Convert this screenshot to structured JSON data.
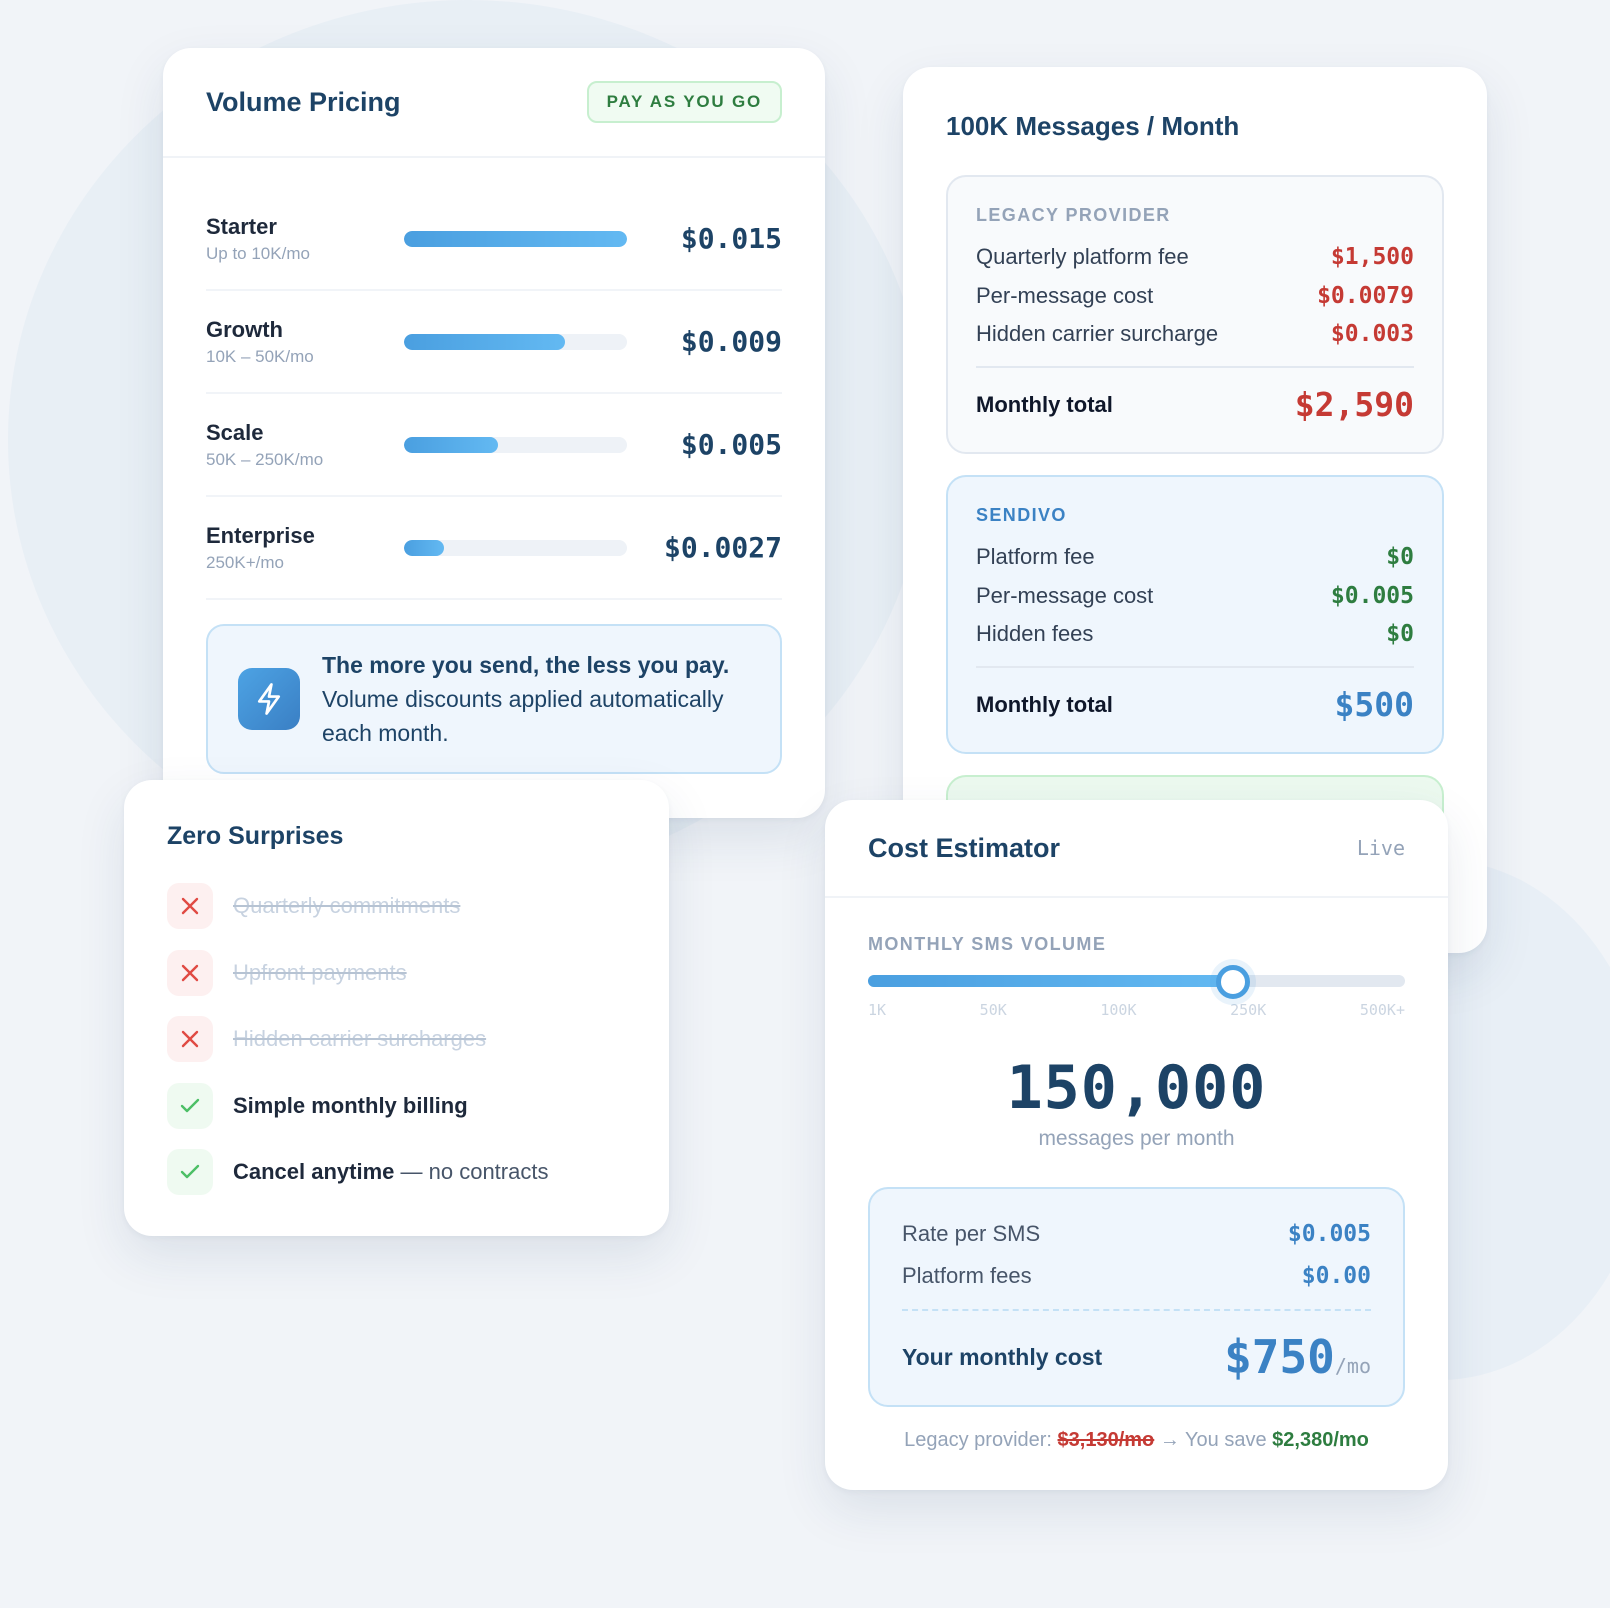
{
  "volume_pricing": {
    "title": "Volume Pricing",
    "badge": "PAY AS YOU GO",
    "tiers": [
      {
        "name": "Starter",
        "range": "Up to 10K/mo",
        "price": "$0.015",
        "bar_pct": 100
      },
      {
        "name": "Growth",
        "range": "10K – 50K/mo",
        "price": "$0.009",
        "bar_pct": 72
      },
      {
        "name": "Scale",
        "range": "50K – 250K/mo",
        "price": "$0.005",
        "bar_pct": 42
      },
      {
        "name": "Enterprise",
        "range": "250K+/mo",
        "price": "$0.0027",
        "bar_pct": 18
      }
    ],
    "tip": {
      "icon": "lightning-bolt-icon",
      "bold": "The more you send, the less you pay.",
      "text": "Volume discounts applied automatically each month."
    }
  },
  "comparison": {
    "title": "100K Messages / Month",
    "legacy": {
      "label": "LEGACY PROVIDER",
      "rows": [
        {
          "label": "Quarterly platform fee",
          "value": "$1,500"
        },
        {
          "label": "Per-message cost",
          "value": "$0.0079"
        },
        {
          "label": "Hidden carrier surcharge",
          "value": "$0.003"
        }
      ],
      "total_label": "Monthly total",
      "total_value": "$2,590"
    },
    "sendivo": {
      "label": "SENDIVO",
      "rows": [
        {
          "label": "Platform fee",
          "value": "$0"
        },
        {
          "label": "Per-message cost",
          "value": "$0.005"
        },
        {
          "label": "Hidden fees",
          "value": "$0"
        }
      ],
      "total_label": "Monthly total",
      "total_value": "$500"
    }
  },
  "zero_surprises": {
    "title": "Zero Surprises",
    "items": [
      {
        "type": "no",
        "text": "Quarterly commitments"
      },
      {
        "type": "no",
        "text": "Upfront payments"
      },
      {
        "type": "no",
        "text": "Hidden carrier surcharges"
      },
      {
        "type": "yes",
        "text": "Simple monthly billing",
        "suffix": ""
      },
      {
        "type": "yes",
        "text": "Cancel anytime",
        "suffix": " — no contracts"
      }
    ]
  },
  "estimator": {
    "title": "Cost Estimator",
    "status": "Live",
    "volume_label": "MONTHLY SMS VOLUME",
    "slider_pct": 68,
    "ticks": [
      "1K",
      "50K",
      "100K",
      "250K",
      "500K+"
    ],
    "volume_value": "150,000",
    "volume_unit": "messages per month",
    "rate_label": "Rate per SMS",
    "rate_value": "$0.005",
    "fees_label": "Platform fees",
    "fees_value": "$0.00",
    "total_label": "Your monthly cost",
    "total_value": "$750",
    "total_suffix": "/mo",
    "savings_prefix": "Legacy provider: ",
    "savings_old": "$3,130/mo",
    "savings_mid": " → You save ",
    "savings_amount": "$2,380/mo"
  },
  "colors": {
    "navy": "#1d4366",
    "accent_blue": "#3b82c4",
    "bar_blue": "#4a9fe0",
    "red": "#c53a34",
    "green": "#2e7d40"
  }
}
